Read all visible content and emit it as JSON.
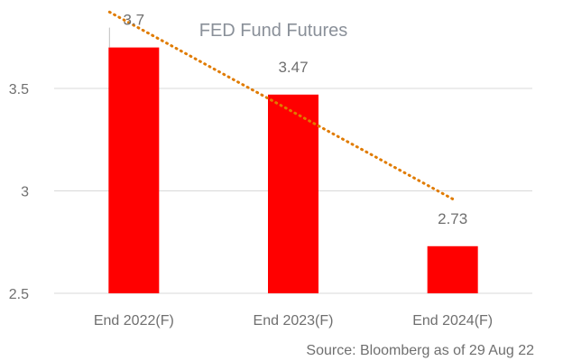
{
  "chart_data": {
    "type": "bar",
    "title": "FED Fund Futures",
    "categories": [
      "End 2022(F)",
      "End 2023(F)",
      "End 2024(F)"
    ],
    "values": [
      3.7,
      3.47,
      2.73
    ],
    "data_labels": [
      "3.7",
      "3.47",
      "2.73"
    ],
    "ylim": [
      2.5,
      3.75
    ],
    "yticks": [
      2.5,
      3,
      3.5
    ],
    "ytick_labels": [
      "2.5",
      "3",
      "3.5"
    ],
    "xlabel": "",
    "ylabel": "",
    "grid": true,
    "legend": "none",
    "trendline": {
      "type": "linear",
      "style": "dotted"
    },
    "source": "Source: Bloomberg as of 29 Aug 22"
  },
  "colors": {
    "bar": "#ff0000",
    "trendline": "#e07b00",
    "gridline": "#d9d9d9",
    "text": "#6f6f6f",
    "title": "#8a9099"
  }
}
